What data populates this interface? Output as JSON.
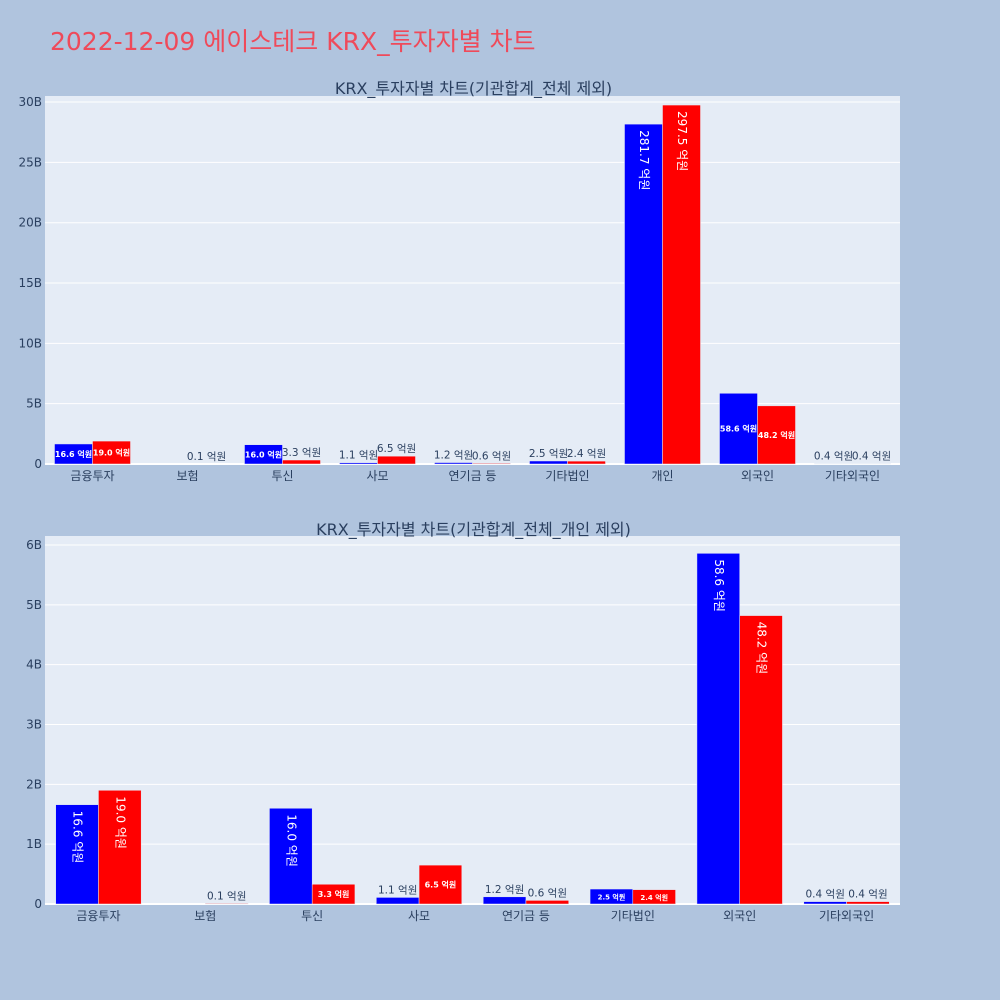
{
  "page": {
    "title_date": "2022-12-09",
    "title_company": "에이스테크",
    "title_rest": "KRX_투자자별 차트"
  },
  "colors": {
    "background": "#b0c4de",
    "plot_background": "#e5ecf6",
    "buy": "#0000ff",
    "sell": "#ff0000",
    "title": "#ef4a5a",
    "text": "#2a3f5f"
  },
  "chart_data": [
    {
      "type": "bar",
      "title": "KRX_투자자별 차트(기관합계_전체 제외)",
      "categories": [
        "금융투자",
        "보험",
        "투신",
        "사모",
        "연기금 등",
        "기타법인",
        "개인",
        "외국인",
        "기타외국인"
      ],
      "series": [
        {
          "color": "#0000ff",
          "values": [
            1.66,
            0,
            1.6,
            0.11,
            0.12,
            0.25,
            28.17,
            5.86,
            0.04
          ],
          "labels": [
            "16.6 억원",
            "",
            "16.0 억원",
            "1.1 억원",
            "1.2 억원",
            "2.5 억원",
            "281.7 억원",
            "58.6 억원",
            "0.4 억원"
          ]
        },
        {
          "color": "#ff0000",
          "values": [
            1.9,
            0.01,
            0.33,
            0.65,
            0.06,
            0.24,
            29.75,
            4.82,
            0.04
          ],
          "labels": [
            "19.0 억원",
            "0.1 억원",
            "3.3 억원",
            "6.5 억원",
            "0.6 억원",
            "2.4 억원",
            "297.5 억원",
            "48.2 억원",
            "0.4 억원"
          ]
        }
      ],
      "ylim": [
        0,
        30.5
      ],
      "yticks": [
        0,
        5,
        10,
        15,
        20,
        25,
        30
      ],
      "ytick_labels": [
        "0",
        "5B",
        "10B",
        "15B",
        "20B",
        "25B",
        "30B"
      ],
      "grid": true
    },
    {
      "type": "bar",
      "title": "KRX_투자자별 차트(기관합계_전체_개인 제외)",
      "categories": [
        "금융투자",
        "보험",
        "투신",
        "사모",
        "연기금 등",
        "기타법인",
        "외국인",
        "기타외국인"
      ],
      "series": [
        {
          "color": "#0000ff",
          "values": [
            1.66,
            0,
            1.6,
            0.11,
            0.12,
            0.25,
            5.86,
            0.04
          ],
          "labels": [
            "16.6 억원",
            "",
            "16.0 억원",
            "1.1 억원",
            "1.2 억원",
            "2.5 억원",
            "58.6 억원",
            "0.4 억원"
          ]
        },
        {
          "color": "#ff0000",
          "values": [
            1.9,
            0.01,
            0.33,
            0.65,
            0.06,
            0.24,
            4.82,
            0.04
          ],
          "labels": [
            "19.0 억원",
            "0.1 억원",
            "3.3 억원",
            "6.5 억원",
            "0.6 억원",
            "2.4 억원",
            "48.2 억원",
            "0.4 억원"
          ]
        }
      ],
      "ylim": [
        0,
        6.15
      ],
      "yticks": [
        0,
        1,
        2,
        3,
        4,
        5,
        6
      ],
      "ytick_labels": [
        "0",
        "1B",
        "2B",
        "3B",
        "4B",
        "5B",
        "6B"
      ],
      "grid": true
    }
  ]
}
